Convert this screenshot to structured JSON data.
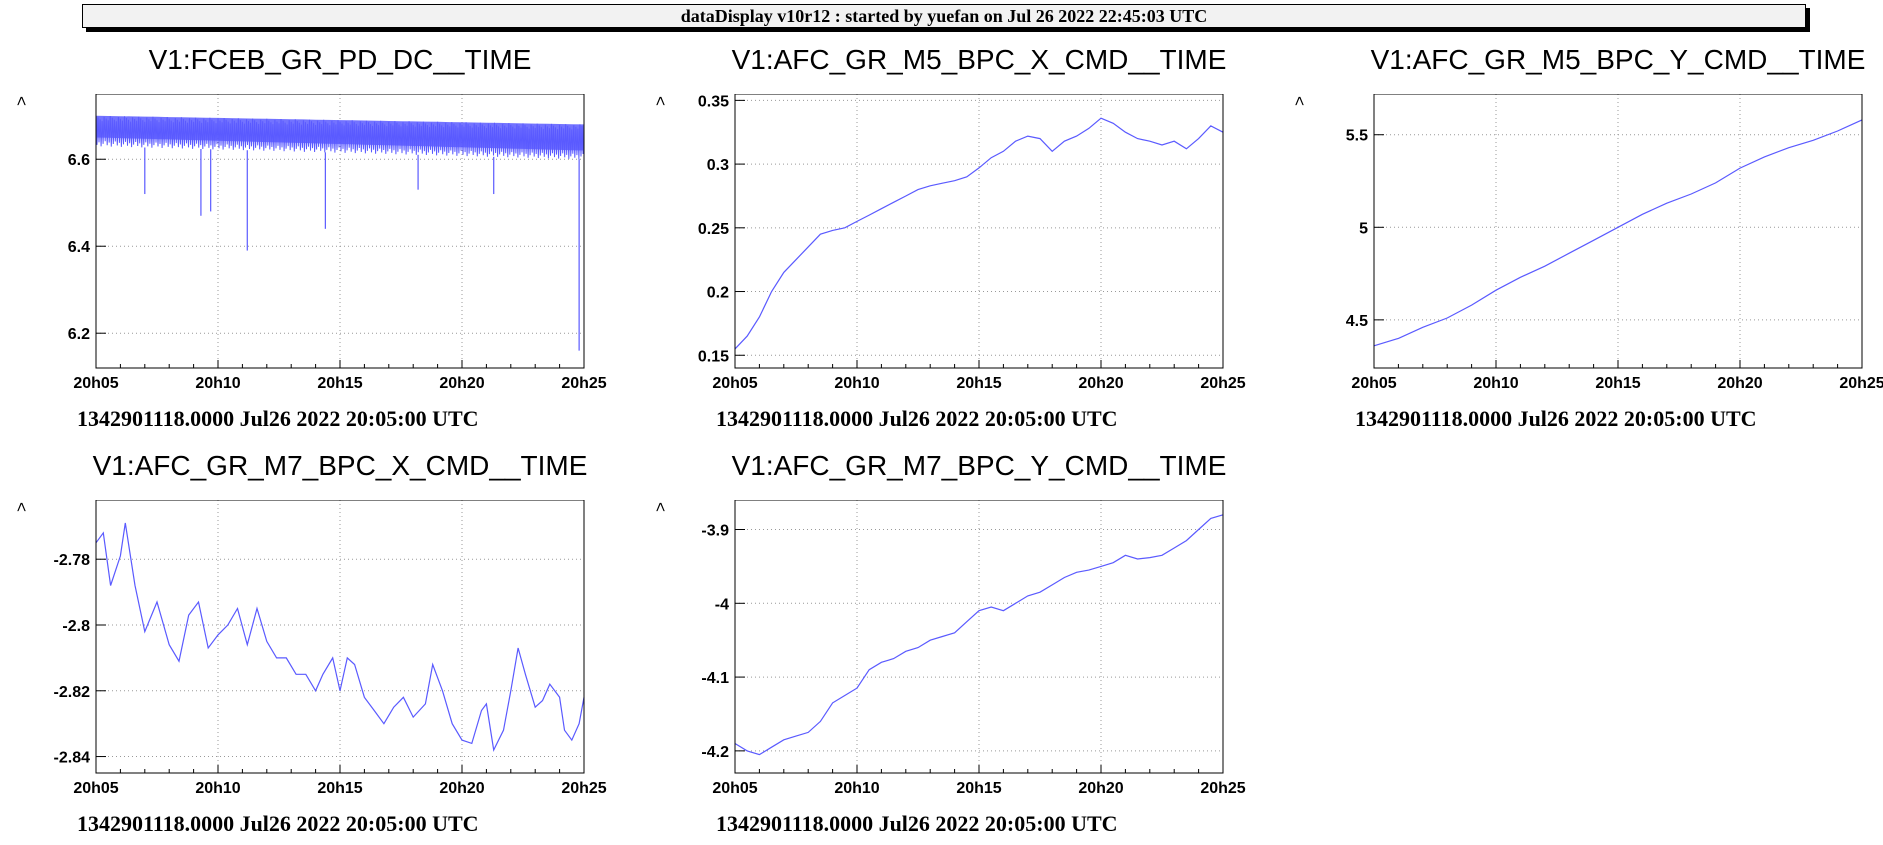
{
  "window": {
    "title": "dataDisplay v10r12 : started by yuefan on Jul 26 2022 22:45:03 UTC"
  },
  "colors": {
    "trace": "#5a5aff",
    "grid": "#999999",
    "axis": "#000000"
  },
  "chart_data": [
    {
      "type": "line",
      "title": "V1:FCEB_GR_PD_DC__TIME",
      "ylabel": ">",
      "xlabel": "1342901118.0000 Jul26 2022 20:05:00 UTC",
      "x_tick_labels": [
        "20h05",
        "20h10",
        "20h15",
        "20h20",
        "20h25"
      ],
      "x_ticks_min": [
        0,
        5,
        10,
        15,
        20
      ],
      "xlim": [
        0,
        20
      ],
      "ylim": [
        6.12,
        6.75
      ],
      "y_ticks": [
        6.2,
        6.4,
        6.6
      ],
      "y_tick_labels": [
        "6.2",
        "6.4",
        "6.6"
      ],
      "grid": true,
      "noisy_band": {
        "upper": [
          [
            0,
            6.7
          ],
          [
            10,
            6.69
          ],
          [
            20,
            6.68
          ]
        ],
        "lower": [
          [
            0,
            6.63
          ],
          [
            10,
            6.615
          ],
          [
            20,
            6.6
          ]
        ]
      },
      "spikes": [
        [
          2,
          6.52
        ],
        [
          4.3,
          6.47
        ],
        [
          4.7,
          6.48
        ],
        [
          6.2,
          6.39
        ],
        [
          9.4,
          6.44
        ],
        [
          13.2,
          6.53
        ],
        [
          16.3,
          6.52
        ],
        [
          19.8,
          6.16
        ]
      ]
    },
    {
      "type": "line",
      "title": "V1:AFC_GR_M5_BPC_X_CMD__TIME",
      "ylabel": ">",
      "xlabel": "1342901118.0000 Jul26 2022 20:05:00 UTC",
      "x_tick_labels": [
        "20h05",
        "20h10",
        "20h15",
        "20h20",
        "20h25"
      ],
      "x_ticks_min": [
        0,
        5,
        10,
        15,
        20
      ],
      "xlim": [
        0,
        20
      ],
      "ylim": [
        0.14,
        0.355
      ],
      "y_ticks": [
        0.15,
        0.2,
        0.25,
        0.3,
        0.35
      ],
      "y_tick_labels": [
        "0.15",
        "0.2",
        "0.25",
        "0.3",
        "0.35"
      ],
      "grid": true,
      "points": [
        [
          0,
          0.155
        ],
        [
          0.5,
          0.165
        ],
        [
          1.0,
          0.18
        ],
        [
          1.5,
          0.2
        ],
        [
          2.0,
          0.215
        ],
        [
          2.5,
          0.225
        ],
        [
          3.0,
          0.235
        ],
        [
          3.5,
          0.245
        ],
        [
          4.0,
          0.248
        ],
        [
          4.5,
          0.25
        ],
        [
          5.0,
          0.255
        ],
        [
          5.5,
          0.26
        ],
        [
          6.0,
          0.265
        ],
        [
          6.5,
          0.27
        ],
        [
          7.0,
          0.275
        ],
        [
          7.5,
          0.28
        ],
        [
          8.0,
          0.283
        ],
        [
          8.5,
          0.285
        ],
        [
          9.0,
          0.287
        ],
        [
          9.5,
          0.29
        ],
        [
          10.0,
          0.297
        ],
        [
          10.5,
          0.305
        ],
        [
          11.0,
          0.31
        ],
        [
          11.5,
          0.318
        ],
        [
          12.0,
          0.322
        ],
        [
          12.5,
          0.32
        ],
        [
          13.0,
          0.31
        ],
        [
          13.5,
          0.318
        ],
        [
          14.0,
          0.322
        ],
        [
          14.5,
          0.328
        ],
        [
          15.0,
          0.336
        ],
        [
          15.5,
          0.332
        ],
        [
          16.0,
          0.325
        ],
        [
          16.5,
          0.32
        ],
        [
          17.0,
          0.318
        ],
        [
          17.5,
          0.315
        ],
        [
          18.0,
          0.318
        ],
        [
          18.5,
          0.312
        ],
        [
          19.0,
          0.32
        ],
        [
          19.5,
          0.33
        ],
        [
          20.0,
          0.325
        ]
      ]
    },
    {
      "type": "line",
      "title": "V1:AFC_GR_M5_BPC_Y_CMD__TIME",
      "ylabel": ">",
      "xlabel": "1342901118.0000 Jul26 2022 20:05:00 UTC",
      "x_tick_labels": [
        "20h05",
        "20h10",
        "20h15",
        "20h20",
        "20h25"
      ],
      "x_ticks_min": [
        0,
        5,
        10,
        15,
        20
      ],
      "xlim": [
        0,
        20
      ],
      "ylim": [
        4.24,
        5.72
      ],
      "y_ticks": [
        4.5,
        5.0,
        5.5
      ],
      "y_tick_labels": [
        "4.5",
        "5",
        "5.5"
      ],
      "grid": true,
      "points": [
        [
          0,
          4.36
        ],
        [
          1,
          4.4
        ],
        [
          2,
          4.46
        ],
        [
          3,
          4.51
        ],
        [
          4,
          4.58
        ],
        [
          5,
          4.66
        ],
        [
          6,
          4.73
        ],
        [
          7,
          4.79
        ],
        [
          8,
          4.86
        ],
        [
          9,
          4.93
        ],
        [
          10,
          5.0
        ],
        [
          11,
          5.07
        ],
        [
          12,
          5.13
        ],
        [
          13,
          5.18
        ],
        [
          14,
          5.24
        ],
        [
          15,
          5.32
        ],
        [
          16,
          5.38
        ],
        [
          17,
          5.43
        ],
        [
          18,
          5.47
        ],
        [
          19,
          5.52
        ],
        [
          20,
          5.58
        ]
      ]
    },
    {
      "type": "line",
      "title": "V1:AFC_GR_M7_BPC_X_CMD__TIME",
      "ylabel": ">",
      "xlabel": "1342901118.0000 Jul26 2022 20:05:00 UTC",
      "x_tick_labels": [
        "20h05",
        "20h10",
        "20h15",
        "20h20",
        "20h25"
      ],
      "x_ticks_min": [
        0,
        5,
        10,
        15,
        20
      ],
      "xlim": [
        0,
        20
      ],
      "ylim": [
        -2.845,
        -2.762
      ],
      "y_ticks": [
        -2.84,
        -2.82,
        -2.8,
        -2.78
      ],
      "y_tick_labels": [
        "-2.84",
        "-2.82",
        "-2.8",
        "-2.78"
      ],
      "grid": true,
      "points": [
        [
          0,
          -2.775
        ],
        [
          0.3,
          -2.772
        ],
        [
          0.6,
          -2.788
        ],
        [
          1.0,
          -2.779
        ],
        [
          1.2,
          -2.769
        ],
        [
          1.6,
          -2.788
        ],
        [
          2.0,
          -2.802
        ],
        [
          2.5,
          -2.793
        ],
        [
          3.0,
          -2.806
        ],
        [
          3.4,
          -2.811
        ],
        [
          3.8,
          -2.797
        ],
        [
          4.2,
          -2.793
        ],
        [
          4.6,
          -2.807
        ],
        [
          5.0,
          -2.803
        ],
        [
          5.4,
          -2.8
        ],
        [
          5.8,
          -2.795
        ],
        [
          6.2,
          -2.806
        ],
        [
          6.6,
          -2.795
        ],
        [
          7.0,
          -2.805
        ],
        [
          7.4,
          -2.81
        ],
        [
          7.8,
          -2.81
        ],
        [
          8.2,
          -2.815
        ],
        [
          8.6,
          -2.815
        ],
        [
          9.0,
          -2.82
        ],
        [
          9.3,
          -2.815
        ],
        [
          9.7,
          -2.81
        ],
        [
          10.0,
          -2.82
        ],
        [
          10.3,
          -2.81
        ],
        [
          10.6,
          -2.812
        ],
        [
          11.0,
          -2.822
        ],
        [
          11.4,
          -2.826
        ],
        [
          11.8,
          -2.83
        ],
        [
          12.2,
          -2.825
        ],
        [
          12.6,
          -2.822
        ],
        [
          13.0,
          -2.828
        ],
        [
          13.5,
          -2.824
        ],
        [
          13.8,
          -2.812
        ],
        [
          14.2,
          -2.82
        ],
        [
          14.6,
          -2.83
        ],
        [
          15.0,
          -2.835
        ],
        [
          15.4,
          -2.836
        ],
        [
          15.8,
          -2.826
        ],
        [
          16.0,
          -2.824
        ],
        [
          16.3,
          -2.838
        ],
        [
          16.7,
          -2.832
        ],
        [
          17.0,
          -2.82
        ],
        [
          17.3,
          -2.807
        ],
        [
          17.6,
          -2.815
        ],
        [
          18.0,
          -2.825
        ],
        [
          18.3,
          -2.823
        ],
        [
          18.6,
          -2.818
        ],
        [
          19.0,
          -2.822
        ],
        [
          19.2,
          -2.832
        ],
        [
          19.5,
          -2.835
        ],
        [
          19.8,
          -2.83
        ],
        [
          20.0,
          -2.822
        ]
      ]
    },
    {
      "type": "line",
      "title": "V1:AFC_GR_M7_BPC_Y_CMD__TIME",
      "ylabel": ">",
      "xlabel": "1342901118.0000 Jul26 2022 20:05:00 UTC",
      "x_tick_labels": [
        "20h05",
        "20h10",
        "20h15",
        "20h20",
        "20h25"
      ],
      "x_ticks_min": [
        0,
        5,
        10,
        15,
        20
      ],
      "xlim": [
        0,
        20
      ],
      "ylim": [
        -4.23,
        -3.86
      ],
      "y_ticks": [
        -4.2,
        -4.1,
        -4.0,
        -3.9
      ],
      "y_tick_labels": [
        "-4.2",
        "-4.1",
        "-4",
        "-3.9"
      ],
      "grid": true,
      "points": [
        [
          0,
          -4.19
        ],
        [
          0.5,
          -4.2
        ],
        [
          1.0,
          -4.205
        ],
        [
          1.5,
          -4.195
        ],
        [
          2.0,
          -4.185
        ],
        [
          2.5,
          -4.18
        ],
        [
          3.0,
          -4.175
        ],
        [
          3.5,
          -4.16
        ],
        [
          4.0,
          -4.135
        ],
        [
          4.5,
          -4.125
        ],
        [
          5.0,
          -4.115
        ],
        [
          5.5,
          -4.09
        ],
        [
          6.0,
          -4.08
        ],
        [
          6.5,
          -4.075
        ],
        [
          7.0,
          -4.065
        ],
        [
          7.5,
          -4.06
        ],
        [
          8.0,
          -4.05
        ],
        [
          8.5,
          -4.045
        ],
        [
          9.0,
          -4.04
        ],
        [
          9.5,
          -4.025
        ],
        [
          10.0,
          -4.01
        ],
        [
          10.5,
          -4.005
        ],
        [
          11.0,
          -4.01
        ],
        [
          11.5,
          -4.0
        ],
        [
          12.0,
          -3.99
        ],
        [
          12.5,
          -3.985
        ],
        [
          13.0,
          -3.975
        ],
        [
          13.5,
          -3.965
        ],
        [
          14.0,
          -3.958
        ],
        [
          14.5,
          -3.955
        ],
        [
          15.0,
          -3.95
        ],
        [
          15.5,
          -3.945
        ],
        [
          16.0,
          -3.935
        ],
        [
          16.5,
          -3.94
        ],
        [
          17.0,
          -3.938
        ],
        [
          17.5,
          -3.935
        ],
        [
          18.0,
          -3.925
        ],
        [
          18.5,
          -3.915
        ],
        [
          19.0,
          -3.9
        ],
        [
          19.5,
          -3.885
        ],
        [
          20.0,
          -3.88
        ]
      ]
    }
  ]
}
